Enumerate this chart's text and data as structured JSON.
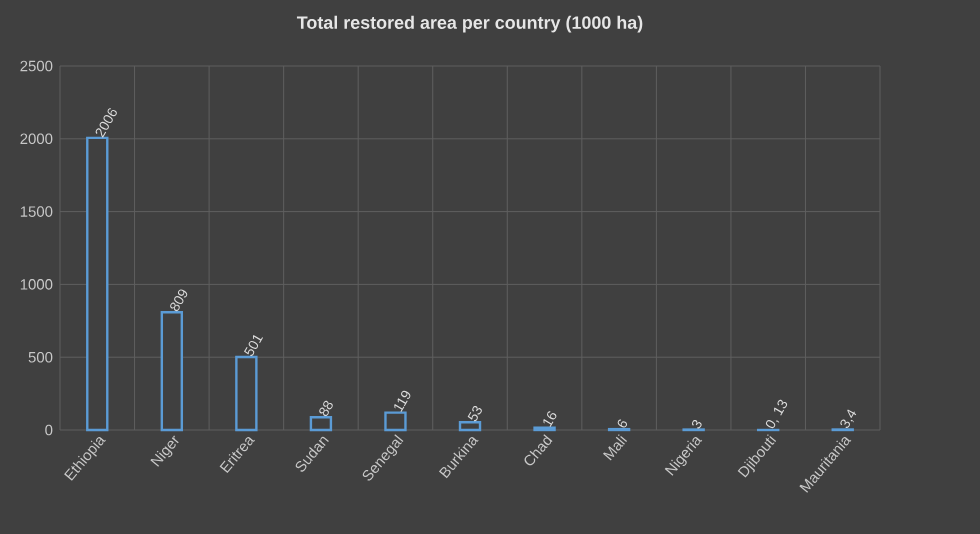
{
  "chart_data": {
    "type": "bar",
    "title": "Total restored area per country (1000 ha)",
    "categories": [
      "Ethiopia",
      "Niger",
      "Eritrea",
      "Sudan",
      "Senegal",
      "Burkina",
      "Chad",
      "Mali",
      "Nigeria",
      "Djibouti",
      "Mauritania"
    ],
    "values": [
      2006,
      809,
      501,
      88,
      119,
      53,
      16,
      6,
      3,
      0.13,
      3.4
    ],
    "value_labels": [
      "2006",
      "809",
      "501",
      "88",
      "119",
      "53",
      "16",
      "6",
      "3",
      "0, 13",
      "3,4"
    ],
    "color": "#5b9bd5",
    "ylim": [
      0,
      2500
    ],
    "yticks": [
      0,
      500,
      1000,
      1500,
      2000,
      2500
    ],
    "grid": true
  }
}
